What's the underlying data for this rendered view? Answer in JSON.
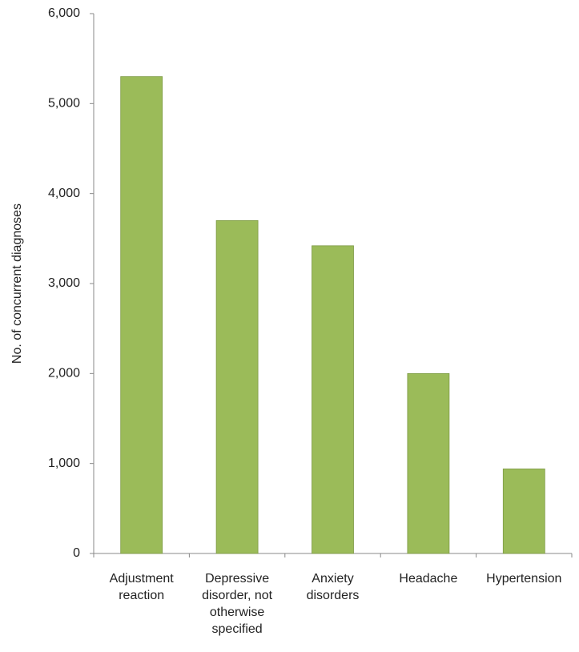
{
  "chart_data": {
    "type": "bar",
    "y_label": "No. of concurrent diagnoses",
    "categories": [
      "Adjustment reaction",
      "Depressive disorder, not otherwise specified",
      "Anxiety disorders",
      "Headache",
      "Hypertension"
    ],
    "values": [
      5300,
      3700,
      3420,
      2000,
      940
    ],
    "color": "#9bbb59",
    "ylim": [
      0,
      6000
    ],
    "yticks": [
      0,
      {
        "value": 1000,
        "label": "1,000"
      },
      {
        "value": 2000,
        "label": "2,000"
      },
      {
        "value": 3000,
        "label": "3,000"
      },
      {
        "value": 4000,
        "label": "4,000"
      },
      {
        "value": 5000,
        "label": "5,000"
      },
      {
        "value": 6000,
        "label": "6,000"
      }
    ]
  }
}
